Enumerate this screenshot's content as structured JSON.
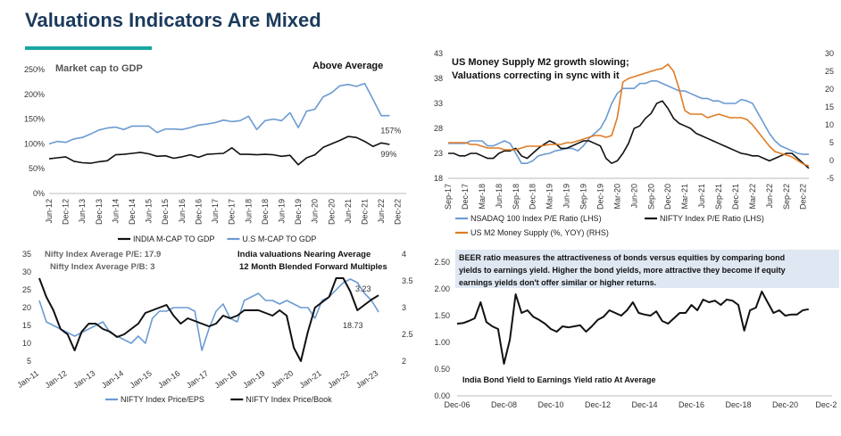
{
  "page": {
    "title": "Valuations Indicators Are Mixed",
    "accent_color": "#1aa6a0",
    "title_color": "#1b3a5c"
  },
  "chart_data": [
    {
      "id": "mcap",
      "type": "line",
      "title": "Market cap to GDP",
      "annotation": "Above Average",
      "yaxis": {
        "ticks": [
          0,
          50,
          100,
          150,
          200,
          250
        ],
        "tick_labels": [
          "0%",
          "50%",
          "100%",
          "150%",
          "200%",
          "250%"
        ],
        "ylim": [
          0,
          250
        ]
      },
      "xaxis": {
        "xlim": [
          0,
          43
        ],
        "ticks": [
          0,
          2,
          4,
          6,
          8,
          10,
          12,
          14,
          16,
          18,
          20,
          22,
          24,
          26,
          28,
          30,
          32,
          34,
          36,
          38,
          40,
          42
        ],
        "tick_labels": [
          "Jun-12",
          "Dec-12",
          "Jun-13",
          "Dec-13",
          "Jun-14",
          "Dec-14",
          "Jun-15",
          "Dec-15",
          "Jun-16",
          "Dec-16",
          "Jun-17",
          "Dec-17",
          "Jun-18",
          "Dec-18",
          "Jun-19",
          "Dec-19",
          "Jun-20",
          "Dec-20",
          "Jun-21",
          "Dec-21",
          "Jun-22",
          "Dec-22"
        ]
      },
      "series": [
        {
          "name": "INDIA M-CAP TO GDP",
          "color": "#111111",
          "values": [
            70,
            72,
            74,
            65,
            62,
            61,
            64,
            66,
            78,
            79,
            81,
            83,
            80,
            75,
            76,
            71,
            74,
            78,
            73,
            79,
            80,
            81,
            92,
            79,
            79,
            78,
            79,
            78,
            75,
            77,
            58,
            72,
            78,
            93,
            100,
            107,
            115,
            113,
            105,
            95,
            102,
            99
          ]
        },
        {
          "name": "U.S M-CAP TO GDP",
          "color": "#6b9bd2",
          "values": [
            100,
            105,
            103,
            110,
            113,
            120,
            128,
            132,
            134,
            129,
            136,
            136,
            136,
            123,
            130,
            130,
            129,
            133,
            138,
            140,
            143,
            148,
            145,
            147,
            156,
            129,
            147,
            150,
            147,
            163,
            133,
            166,
            170,
            195,
            203,
            217,
            220,
            216,
            222,
            190,
            157,
            157
          ]
        }
      ],
      "end_labels": [
        "157%",
        "99%"
      ]
    },
    {
      "id": "m2",
      "type": "line",
      "title": "US Money Supply M2 growth slowing; Valuations correcting in sync with it",
      "lhs": {
        "ticks": [
          18,
          23,
          28,
          33,
          38,
          43
        ],
        "ylim": [
          18,
          43
        ]
      },
      "rhs": {
        "ticks": [
          -5,
          0,
          5,
          10,
          15,
          20,
          25,
          30
        ],
        "ylim": [
          -5,
          30
        ]
      },
      "xaxis": {
        "xlim": [
          0,
          64
        ],
        "ticks": [
          0,
          3,
          6,
          9,
          12,
          15,
          18,
          21,
          24,
          27,
          30,
          33,
          36,
          39,
          42,
          45,
          48,
          51,
          54,
          57,
          60,
          63
        ],
        "tick_labels": [
          "Sep-17",
          "Dec-17",
          "Mar-18",
          "Jun-18",
          "Sep-18",
          "Dec-18",
          "Mar-19",
          "Jun-19",
          "Sep-19",
          "Dec-19",
          "Mar-20",
          "Jun-20",
          "Sep-20",
          "Dec-20",
          "Mar-21",
          "Jun-21",
          "Sep-21",
          "Dec-21",
          "Mar-22",
          "Jun-22",
          "Sep-22",
          "Dec-22"
        ]
      },
      "series": [
        {
          "name": "NSADAQ 100 Index P/E Ratio (LHS)",
          "axis": "lhs",
          "color": "#6b9bd2",
          "values": [
            25,
            25,
            25,
            25,
            25.5,
            25.5,
            25.5,
            24.5,
            24.5,
            25,
            25.5,
            25,
            23,
            21,
            21,
            21.5,
            22.5,
            22.8,
            23,
            23.5,
            23.7,
            24,
            24,
            23.5,
            24.5,
            26,
            27,
            28,
            30,
            33,
            35,
            36,
            36,
            36,
            37,
            37,
            37.5,
            37.5,
            37,
            36.5,
            36,
            35.5,
            35.5,
            35,
            34.5,
            34,
            34,
            33.5,
            33.5,
            33,
            33,
            33,
            33.8,
            33.5,
            33,
            31,
            29,
            27,
            25.5,
            24.5,
            24,
            23.5,
            23,
            22.8,
            22.8
          ]
        },
        {
          "name": "NIFTY Index P/E Ratio (LHS)",
          "axis": "lhs",
          "color": "#111111",
          "values": [
            23,
            23,
            22.5,
            22.5,
            23,
            23,
            22.5,
            22,
            22,
            23,
            23.5,
            23.5,
            24,
            22.5,
            22,
            23,
            24,
            24.8,
            25.5,
            25,
            24,
            24,
            24.5,
            25,
            25.5,
            25.5,
            25,
            24.5,
            22,
            21,
            21.5,
            23,
            25,
            28,
            28.5,
            30,
            31,
            33,
            33.5,
            32,
            30,
            29,
            28.5,
            28,
            27,
            26.5,
            26,
            25.5,
            25,
            24.5,
            24,
            23.5,
            23,
            22.8,
            22.5,
            22.5,
            22,
            21.5,
            22,
            22.5,
            23,
            23,
            22,
            21,
            20
          ]
        },
        {
          "name": "US M2 Money Supply (%, YOY) (RHS)",
          "axis": "rhs",
          "color": "#e07b24",
          "values": [
            5,
            5,
            5,
            5,
            4.5,
            4.5,
            4,
            3.5,
            3.5,
            3.5,
            3,
            3,
            3,
            3.5,
            4,
            4,
            4,
            4.2,
            4.5,
            4.5,
            4.5,
            5,
            5,
            5.5,
            6,
            6.5,
            7,
            7,
            6.5,
            7,
            12,
            22,
            23,
            23.5,
            24,
            24.5,
            25,
            25.5,
            25.8,
            27,
            25,
            20,
            14,
            13,
            13,
            13,
            12,
            12.5,
            13,
            12.5,
            12,
            12,
            12,
            11.5,
            10,
            8,
            6,
            4,
            2.5,
            2,
            1.5,
            1,
            0,
            -1,
            -1.5
          ]
        }
      ],
      "legend": [
        "NSADAQ 100 Index P/E Ratio (LHS)",
        "NIFTY Index P/E Ratio (LHS)",
        "US M2 Money Supply (%, YOY) (RHS)"
      ]
    },
    {
      "id": "nifty",
      "type": "line",
      "text_lines": [
        "Nifty Index Average P/E: 17.9",
        "Nifty Index Average P/B: 3",
        "India valuations Nearing Average",
        "12 Month Blended Forward Multiples"
      ],
      "lhs": {
        "ticks": [
          5,
          10,
          15,
          20,
          25,
          30,
          35
        ],
        "ylim": [
          5,
          35
        ]
      },
      "rhs": {
        "ticks": [
          2,
          2.5,
          3,
          3.5,
          4
        ],
        "ylim": [
          2,
          4
        ]
      },
      "xaxis": {
        "xlim": [
          0,
          49
        ],
        "ticks": [
          0,
          4,
          8,
          12,
          16,
          20,
          24,
          28,
          32,
          36,
          40,
          44,
          48
        ],
        "tick_labels": [
          "Jan-11",
          "Jan-12",
          "Jan-13",
          "Jan-14",
          "Jan-15",
          "Jan-16",
          "Jan-17",
          "Jan-18",
          "Jan-19",
          "Jan-20",
          "Jan-21",
          "Jan-22",
          "Jan-23"
        ]
      },
      "series": [
        {
          "name": "NIFTY Index Price/EPS",
          "axis": "lhs",
          "color": "#6b9bd2",
          "values": [
            22,
            16,
            15,
            14,
            13,
            12,
            13,
            14,
            15,
            16,
            13,
            12,
            11,
            10,
            12,
            10,
            17,
            19,
            19,
            20,
            20,
            20,
            19,
            8,
            14,
            19,
            21,
            17,
            16,
            22,
            23,
            24,
            22,
            22,
            21,
            22,
            21,
            20,
            20,
            17,
            22,
            23,
            25,
            27,
            28,
            27,
            24,
            22,
            18.73
          ]
        },
        {
          "name": "NIFTY Index Price/Book",
          "axis": "rhs",
          "color": "#111111",
          "values": [
            3.55,
            3.2,
            2.95,
            2.6,
            2.5,
            2.2,
            2.55,
            2.7,
            2.7,
            2.6,
            2.55,
            2.45,
            2.5,
            2.6,
            2.7,
            2.9,
            2.95,
            3,
            3.05,
            2.85,
            2.7,
            2.8,
            2.75,
            2.7,
            2.65,
            2.7,
            2.85,
            2.8,
            2.85,
            2.95,
            2.95,
            2.95,
            2.9,
            2.85,
            2.95,
            2.85,
            2.25,
            2,
            2.55,
            3,
            3.1,
            3.2,
            3.55,
            3.55,
            3.3,
            2.95,
            3.05,
            3.15,
            3.23
          ]
        }
      ],
      "end_labels": [
        "3.23",
        "18.73"
      ],
      "legend": [
        "NIFTY Index Price/EPS",
        "NIFTY Index Price/Book"
      ]
    },
    {
      "id": "beer",
      "type": "line",
      "title": "BEER ratio measures the attractiveness of bonds versus equities by comparing bond yields to earnings yield. Higher the bond yields, more attractive they become if equity earnings yields don't offer similar or higher returns.",
      "annotation": "India Bond Yield to Earnings Yield ratio At Average",
      "yaxis": {
        "ticks": [
          0,
          0.5,
          1,
          1.5,
          2,
          2.5
        ],
        "tick_labels": [
          "0.00",
          "0.50",
          "1.00",
          "1.50",
          "2.00",
          "2.50"
        ],
        "ylim": [
          0,
          2.5
        ]
      },
      "xaxis": {
        "xlim": [
          0,
          64
        ],
        "ticks": [
          0,
          8,
          16,
          24,
          32,
          40,
          48,
          56,
          63
        ],
        "tick_labels": [
          "Dec-06",
          "Dec-08",
          "Dec-10",
          "Dec-12",
          "Dec-14",
          "Dec-16",
          "Dec-18",
          "Dec-20",
          "Dec-2"
        ]
      },
      "series": [
        {
          "name": "BEER ratio",
          "color": "#111111",
          "values": [
            1.35,
            1.36,
            1.4,
            1.45,
            1.75,
            1.38,
            1.3,
            1.25,
            0.6,
            1.05,
            1.9,
            1.55,
            1.6,
            1.48,
            1.42,
            1.35,
            1.25,
            1.2,
            1.3,
            1.28,
            1.3,
            1.32,
            1.2,
            1.3,
            1.42,
            1.48,
            1.6,
            1.55,
            1.5,
            1.6,
            1.75,
            1.55,
            1.52,
            1.5,
            1.58,
            1.4,
            1.35,
            1.45,
            1.55,
            1.55,
            1.7,
            1.6,
            1.8,
            1.75,
            1.78,
            1.7,
            1.8,
            1.78,
            1.7,
            1.22,
            1.6,
            1.65,
            1.95,
            1.75,
            1.55,
            1.6,
            1.5,
            1.52,
            1.52,
            1.6,
            1.62
          ]
        }
      ]
    }
  ]
}
